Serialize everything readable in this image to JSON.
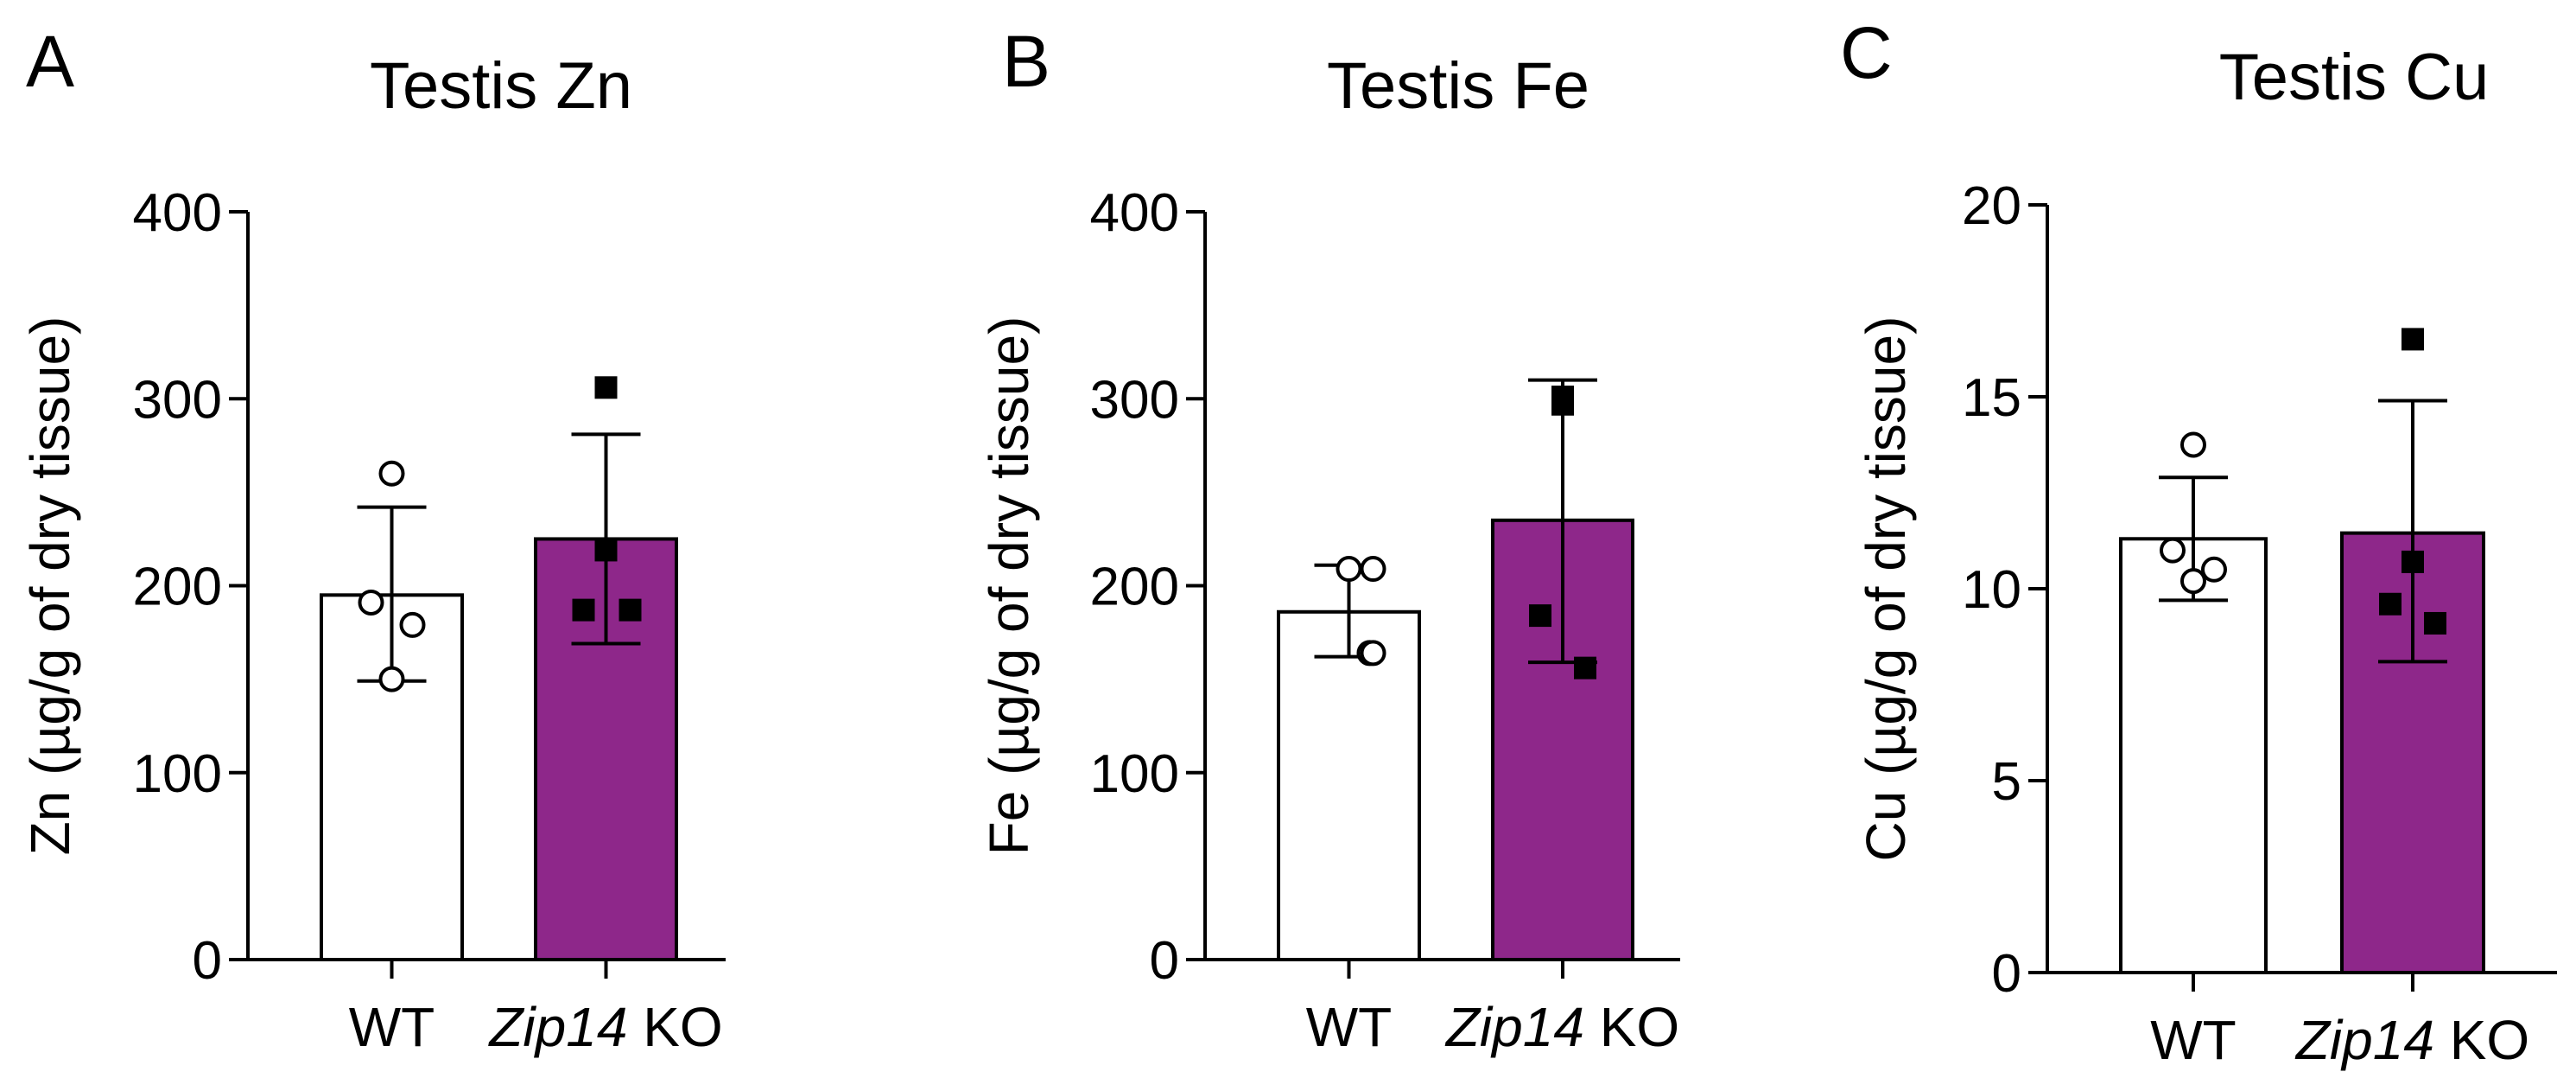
{
  "colors": {
    "wt_fill": "#ffffff",
    "ko_fill": "#8e278a",
    "stroke": "#000000"
  },
  "chart_data": [
    {
      "type": "bar",
      "panel": "A",
      "title": "Testis Zn",
      "ylabel": "Zn (µg/g of dry tissue)",
      "ylim": [
        0,
        400
      ],
      "yticks": [
        0,
        100,
        200,
        300,
        400
      ],
      "categories": [
        {
          "italic": "",
          "plain": "WT"
        },
        {
          "italic": "Zip14",
          "plain": " KO"
        }
      ],
      "means": [
        195,
        225
      ],
      "errors": [
        [
          149,
          242
        ],
        [
          169,
          281
        ]
      ],
      "points": [
        [
          260,
          191,
          179,
          150
        ],
        [
          306,
          219,
          187,
          187
        ]
      ]
    },
    {
      "type": "bar",
      "panel": "B",
      "title": "Testis Fe",
      "ylabel": "Fe (µg/g of dry tissue)",
      "ylim": [
        0,
        400
      ],
      "yticks": [
        0,
        100,
        200,
        300,
        400
      ],
      "categories": [
        {
          "italic": "",
          "plain": "WT"
        },
        {
          "italic": "Zip14",
          "plain": " KO"
        }
      ],
      "means": [
        186,
        235
      ],
      "errors": [
        [
          162,
          211
        ],
        [
          159,
          310
        ]
      ],
      "points": [
        [
          209,
          209,
          164,
          164
        ],
        [
          297,
          301,
          184,
          156
        ]
      ]
    },
    {
      "type": "bar",
      "panel": "C",
      "title": "Testis Cu",
      "ylabel": "Cu (µg/g of dry tissue)",
      "ylim": [
        0,
        20
      ],
      "yticks": [
        0,
        5,
        10,
        15,
        20
      ],
      "categories": [
        {
          "italic": "",
          "plain": "WT"
        },
        {
          "italic": "Zip14",
          "plain": " KO"
        }
      ],
      "means": [
        11.3,
        11.45
      ],
      "errors": [
        [
          9.7,
          12.9
        ],
        [
          8.1,
          14.9
        ]
      ],
      "points": [
        [
          13.75,
          11.0,
          10.5,
          10.2
        ],
        [
          16.5,
          10.7,
          9.6,
          9.1
        ]
      ]
    }
  ]
}
